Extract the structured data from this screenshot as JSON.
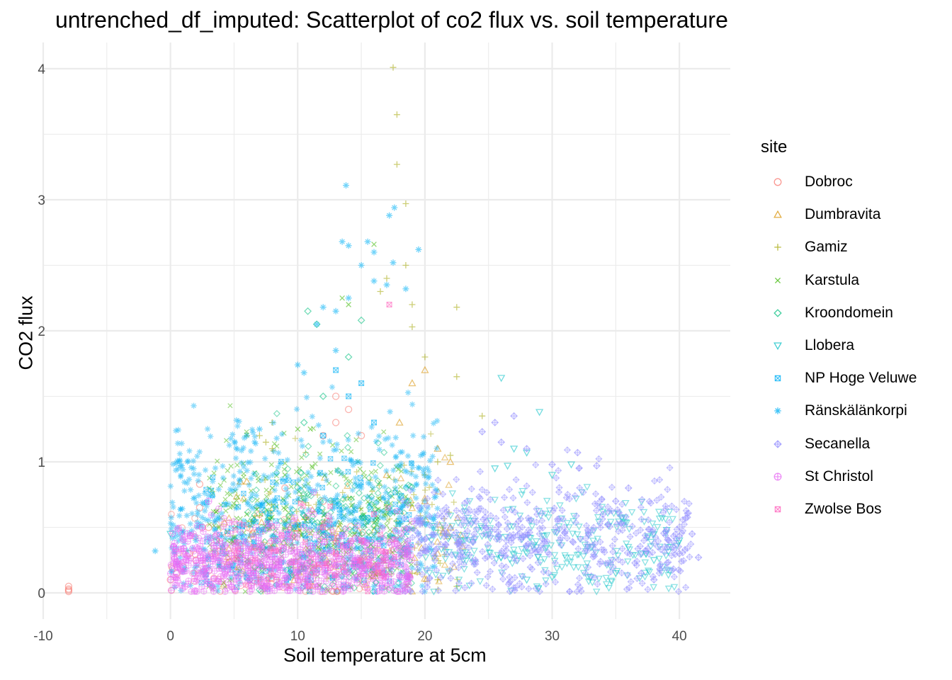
{
  "chart_data": {
    "type": "scatter",
    "title": "untrenched_df_imputed: Scatterplot of co2 flux vs. soil temperature",
    "xlabel": "Soil temperature at 5cm",
    "ylabel": "CO2 flux",
    "xlim": [
      -10,
      44
    ],
    "ylim": [
      -0.2,
      4.2
    ],
    "x_ticks": [
      -10,
      0,
      10,
      20,
      30,
      40
    ],
    "x_tick_labels": [
      "-10",
      "0",
      "10",
      "20",
      "30",
      "40"
    ],
    "y_ticks": [
      0,
      1,
      2,
      3,
      4
    ],
    "y_tick_labels": [
      "0",
      "1",
      "2",
      "3",
      "4"
    ],
    "grid": true,
    "legend_position": "right",
    "legend_title": "site",
    "series": [
      {
        "name": "Dobroc",
        "color": "#F8766D",
        "shape": "circle",
        "points": [
          [
            -8,
            0.01
          ],
          [
            -8,
            0.03
          ],
          [
            -8,
            0.05
          ],
          [
            -8,
            0.02
          ],
          [
            0,
            0.1
          ],
          [
            0.5,
            0.15
          ],
          [
            1,
            0.2
          ],
          [
            1.5,
            0.3
          ],
          [
            2,
            0.25
          ],
          [
            2.3,
            0.65
          ],
          [
            2.3,
            0.83
          ],
          [
            2.5,
            0.5
          ],
          [
            3,
            0.5
          ],
          [
            3.5,
            0.3
          ],
          [
            5,
            0.4
          ],
          [
            7,
            0.6
          ],
          [
            9,
            0.8
          ],
          [
            12,
            1.2
          ],
          [
            13,
            1.3
          ],
          [
            14,
            1.4
          ],
          [
            13,
            1.5
          ],
          [
            15,
            1.2
          ],
          [
            10,
            0.5
          ],
          [
            12,
            0.7
          ]
        ],
        "cloud": {
          "n": 120,
          "xr": [
            0,
            16
          ],
          "peak": 0.25,
          "spread": 0.3
        }
      },
      {
        "name": "Dumbravita",
        "color": "#D89000",
        "shape": "triangle",
        "points": [
          [
            5.5,
            0.85
          ],
          [
            6,
            0.85
          ],
          [
            20,
            1.7
          ],
          [
            19,
            1.6
          ],
          [
            22,
            1.0
          ],
          [
            21,
            1.1
          ],
          [
            18,
            1.3
          ],
          [
            17,
            0.9
          ],
          [
            20,
            0.7
          ],
          [
            22,
            0.5
          ],
          [
            21,
            0.3
          ]
        ],
        "cloud": {
          "n": 100,
          "xr": [
            4,
            23
          ],
          "peak": 0.4,
          "spread": 0.4
        }
      },
      {
        "name": "Gamiz",
        "color": "#A3A500",
        "shape": "plus",
        "points": [
          [
            17.5,
            4.01
          ],
          [
            17.8,
            3.65
          ],
          [
            17.8,
            3.27
          ],
          [
            18.5,
            2.97
          ],
          [
            16.5,
            2.3
          ],
          [
            17,
            2.4
          ],
          [
            18.5,
            2.5
          ],
          [
            19,
            2.2
          ],
          [
            22.5,
            2.18
          ],
          [
            19,
            2.03
          ],
          [
            20,
            1.8
          ],
          [
            22.5,
            1.65
          ],
          [
            24.5,
            1.35
          ],
          [
            8,
            1.3
          ],
          [
            7,
            1.2
          ],
          [
            8,
            1.1
          ],
          [
            7.5,
            1.15
          ],
          [
            22,
            1.05
          ],
          [
            21,
            1.0
          ],
          [
            20,
            0.9
          ],
          [
            22.5,
            0.05
          ],
          [
            21,
            0.1
          ],
          [
            19,
            0.15
          ]
        ],
        "cloud": {
          "n": 120,
          "xr": [
            6,
            23
          ],
          "peak": 0.45,
          "spread": 0.5
        }
      },
      {
        "name": "Karstula",
        "color": "#39B600",
        "shape": "cross",
        "points": [
          [
            16,
            2.66
          ],
          [
            14,
            2.2
          ],
          [
            13.5,
            2.25
          ],
          [
            11,
            1.25
          ],
          [
            10,
            1.25
          ],
          [
            9,
            0.9
          ],
          [
            8,
            0.8
          ],
          [
            7.5,
            0.7
          ],
          [
            6,
            0.6
          ]
        ],
        "cloud": {
          "n": 350,
          "xr": [
            3,
            19
          ],
          "peak": 0.5,
          "spread": 0.55
        }
      },
      {
        "name": "Kroondomein",
        "color": "#00BF7D",
        "shape": "diamond",
        "points": [
          [
            10.8,
            2.15
          ],
          [
            11.5,
            2.05
          ],
          [
            15,
            2.08
          ],
          [
            14,
            1.8
          ],
          [
            12,
            1.5
          ],
          [
            10.5,
            1.3
          ]
        ],
        "cloud": {
          "n": 200,
          "xr": [
            6,
            19
          ],
          "peak": 0.5,
          "spread": 0.5
        }
      },
      {
        "name": "Llobera",
        "color": "#00BFC4",
        "shape": "tri-down",
        "points": [
          [
            0,
            0.45
          ],
          [
            26,
            1.64
          ],
          [
            29,
            1.38
          ],
          [
            27,
            1.1
          ],
          [
            28,
            1.07
          ],
          [
            31.5,
            0.98
          ],
          [
            30,
            0.9
          ],
          [
            26.5,
            0.97
          ],
          [
            25.5,
            0.95
          ],
          [
            37,
            0.3
          ],
          [
            38,
            0.45
          ],
          [
            39,
            0.48
          ],
          [
            40,
            0.4
          ],
          [
            38,
            0.25
          ],
          [
            35,
            0.15
          ],
          [
            30,
            0.12
          ],
          [
            28,
            0.1
          ],
          [
            33,
            0.12
          ]
        ],
        "cloud": {
          "n": 260,
          "xr": [
            20,
            40
          ],
          "peak": 0.35,
          "spread": 0.35
        }
      },
      {
        "name": "NP Hoge Veluwe",
        "color": "#00B0F6",
        "shape": "square-x",
        "points": [
          [
            13,
            1.7
          ],
          [
            15,
            1.6
          ],
          [
            14,
            1.5
          ],
          [
            12,
            1.2
          ],
          [
            16,
            1.3
          ]
        ],
        "cloud": {
          "n": 150,
          "xr": [
            2,
            19
          ],
          "peak": 0.4,
          "spread": 0.5
        }
      },
      {
        "name": "Ränskälänkorpi",
        "color": "#00B0F6",
        "shape": "asterisk",
        "points": [
          [
            13.8,
            3.11
          ],
          [
            17.6,
            2.94
          ],
          [
            17.2,
            2.88
          ],
          [
            13.5,
            2.68
          ],
          [
            14,
            2.65
          ],
          [
            15.5,
            2.68
          ],
          [
            17.5,
            2.52
          ],
          [
            19.5,
            2.62
          ],
          [
            16,
            2.6
          ],
          [
            15,
            2.5
          ],
          [
            18.5,
            2.32
          ],
          [
            17,
            2.35
          ],
          [
            16,
            2.38
          ],
          [
            14,
            2.25
          ],
          [
            13,
            2.15
          ],
          [
            12,
            2.18
          ],
          [
            11.5,
            2.05
          ],
          [
            13,
            1.85
          ],
          [
            10,
            1.74
          ],
          [
            10.5,
            1.68
          ],
          [
            6,
            1.2
          ],
          [
            7,
            1.25
          ],
          [
            3.5,
            0.48
          ],
          [
            1,
            0.47
          ],
          [
            -1.2,
            0.32
          ],
          [
            2,
            0.4
          ],
          [
            3,
            0.2
          ],
          [
            14,
            0.05
          ],
          [
            16,
            0.05
          ],
          [
            18,
            0.1
          ]
        ],
        "cloud": {
          "n": 600,
          "xr": [
            0,
            21
          ],
          "peak": 0.6,
          "spread": 0.65
        }
      },
      {
        "name": "Secanella",
        "color": "#9590FF",
        "shape": "diamond-plus",
        "points": [
          [
            27,
            1.35
          ],
          [
            25.5,
            1.3
          ],
          [
            24.5,
            1.23
          ],
          [
            26,
            1.15
          ],
          [
            28,
            1.1
          ],
          [
            32,
            1.07
          ],
          [
            30,
            0.98
          ],
          [
            33.5,
            0.97
          ],
          [
            40.5,
            0.57
          ],
          [
            41,
            0.45
          ],
          [
            39,
            0.48
          ],
          [
            41.5,
            0.27
          ],
          [
            40,
            0.3
          ],
          [
            39.5,
            0.35
          ],
          [
            36,
            0.8
          ],
          [
            35,
            0.7
          ],
          [
            34,
            0.6
          ],
          [
            38,
            0.1
          ],
          [
            37,
            0.15
          ]
        ],
        "cloud": {
          "n": 520,
          "xr": [
            18,
            41
          ],
          "peak": 0.4,
          "spread": 0.4
        }
      },
      {
        "name": "St Christol",
        "color": "#E76BF3",
        "shape": "circle-plus",
        "points": [
          [
            3,
            0.7
          ],
          [
            2.5,
            0.5
          ],
          [
            1,
            0.3
          ],
          [
            0.5,
            0.2
          ]
        ],
        "cloud": {
          "n": 700,
          "xr": [
            0,
            19
          ],
          "peak": 0.22,
          "spread": 0.28
        }
      },
      {
        "name": "Zwolse Bos",
        "color": "#FF62BC",
        "shape": "square-x",
        "points": [
          [
            17.2,
            2.2
          ],
          [
            16,
            0.6
          ],
          [
            15,
            0.4
          ],
          [
            12,
            0.5
          ],
          [
            13,
            0.3
          ]
        ],
        "cloud": {
          "n": 60,
          "xr": [
            5,
            18
          ],
          "peak": 0.3,
          "spread": 0.3
        }
      }
    ]
  }
}
